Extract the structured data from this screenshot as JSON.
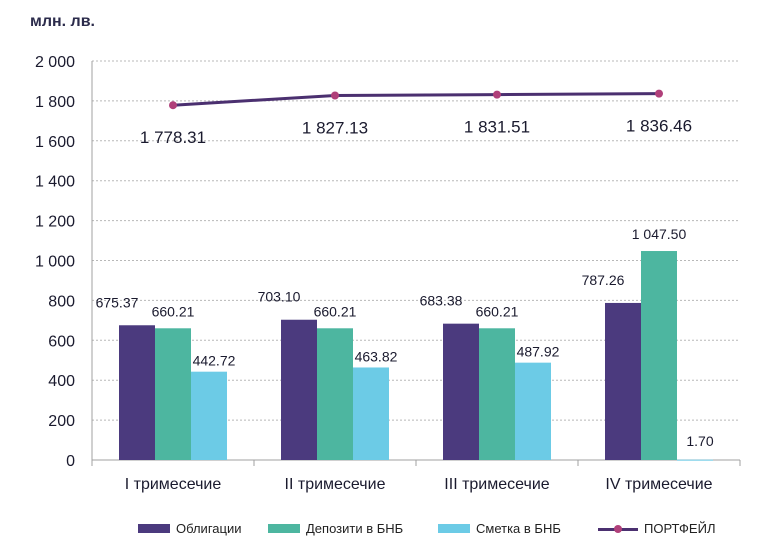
{
  "chart_data": {
    "type": "bar",
    "unit_label": "млн. лв.",
    "categories": [
      "I тримесечие",
      "II тримесечие",
      "III тримесечие",
      "IV тримесечие"
    ],
    "series": [
      {
        "name": "Облигации",
        "values": [
          675.37,
          703.1,
          683.38,
          787.26
        ],
        "labels": [
          "675.37",
          "703.10",
          "683.38",
          "787.26"
        ],
        "color": "#4b3a7e"
      },
      {
        "name": "Депозити в БНБ",
        "values": [
          660.21,
          660.21,
          660.21,
          1047.5
        ],
        "labels": [
          "660.21",
          "660.21",
          "660.21",
          "1 047.50"
        ],
        "color": "#4db6a0"
      },
      {
        "name": "Сметка в БНБ",
        "values": [
          442.72,
          463.82,
          487.92,
          1.7
        ],
        "labels": [
          "442.72",
          "463.82",
          "487.92",
          "1.70"
        ],
        "color": "#6ccbe6"
      }
    ],
    "line_series": {
      "name": "ПОРТФЕЙЛ",
      "values": [
        1778.31,
        1827.13,
        1831.51,
        1836.46
      ],
      "labels": [
        "1 778.31",
        "1 827.13",
        "1 831.51",
        "1 836.46"
      ],
      "color": "#4b3070",
      "marker_color": "#b0407a"
    },
    "ylim": [
      0,
      2000
    ],
    "yticks": [
      0,
      200,
      400,
      600,
      800,
      1000,
      1200,
      1400,
      1600,
      1800,
      2000
    ],
    "ytick_labels": [
      "0",
      "200",
      "400",
      "600",
      "800",
      "1 000",
      "1 200",
      "1 400",
      "1 600",
      "1 800",
      "2 000"
    ],
    "grid": true,
    "legend_position": "bottom"
  }
}
